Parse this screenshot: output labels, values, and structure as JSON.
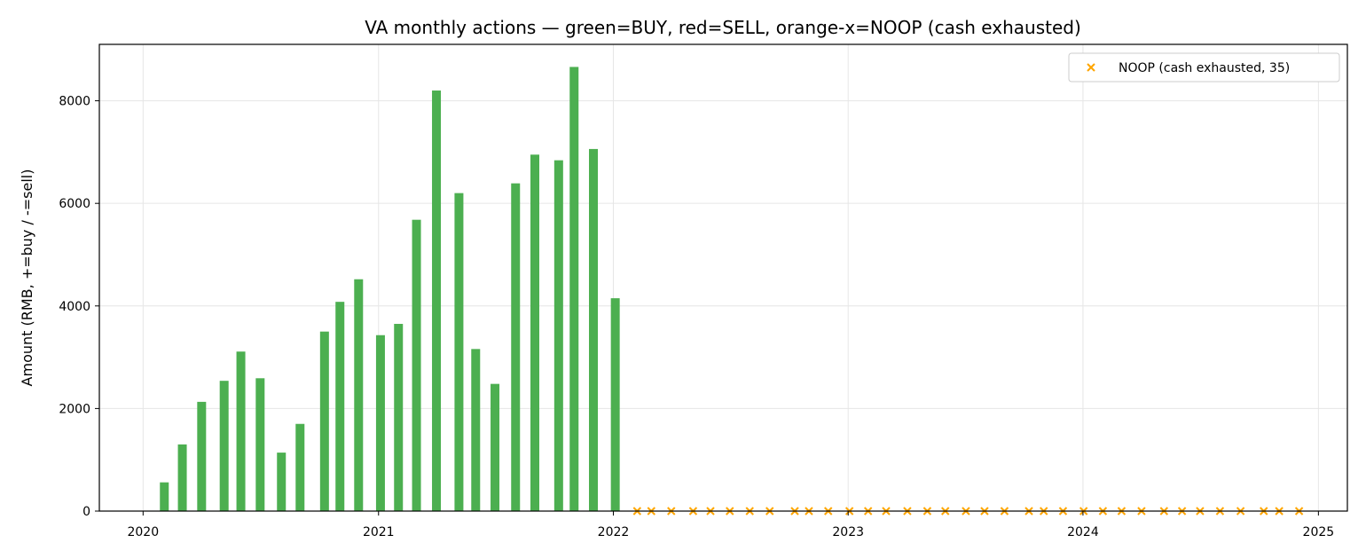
{
  "chart_data": {
    "type": "bar",
    "title": "VA monthly actions — green=BUY, red=SELL, orange-x=NOOP (cash exhausted)",
    "xlabel": "",
    "ylabel": "Amount (RMB, +=buy / -=sell)",
    "x_range": [
      "2019-10-25",
      "2025-02-15"
    ],
    "ylim": [
      0,
      9100
    ],
    "x_ticks": [
      "2020",
      "2021",
      "2022",
      "2023",
      "2024",
      "2025"
    ],
    "y_ticks": [
      0,
      2000,
      4000,
      6000,
      8000
    ],
    "grid": true,
    "legend_position": "top-right",
    "colors": {
      "buy": "#4caf50",
      "sell": "#d62728",
      "noop": "#ffa500",
      "axis": "#000000",
      "grid": "#e6e6e6"
    },
    "series": [
      {
        "kind": "buy",
        "dates": [
          "2020-02-03",
          "2020-03-02",
          "2020-04-01",
          "2020-05-06",
          "2020-06-01",
          "2020-07-01",
          "2020-08-03",
          "2020-09-01",
          "2020-10-09",
          "2020-11-02",
          "2020-12-01",
          "2021-01-04",
          "2021-02-01",
          "2021-03-01",
          "2021-04-01",
          "2021-05-06",
          "2021-06-01",
          "2021-07-01",
          "2021-08-02",
          "2021-09-01",
          "2021-10-08",
          "2021-11-01",
          "2021-12-01",
          "2022-01-04"
        ],
        "values": [
          560,
          1300,
          2130,
          2540,
          3110,
          2590,
          1140,
          1700,
          3500,
          4080,
          4520,
          3430,
          3650,
          5680,
          8200,
          6200,
          3160,
          2480,
          6390,
          6950,
          6840,
          8660,
          7060,
          4150
        ]
      },
      {
        "kind": "noop",
        "name": "NOOP (cash exhausted, 35)",
        "dates": [
          "2022-02-07",
          "2022-03-01",
          "2022-04-01",
          "2022-05-05",
          "2022-06-01",
          "2022-07-01",
          "2022-08-01",
          "2022-09-01",
          "2022-10-10",
          "2022-11-01",
          "2022-12-01",
          "2023-01-03",
          "2023-02-01",
          "2023-03-01",
          "2023-04-03",
          "2023-05-04",
          "2023-06-01",
          "2023-07-03",
          "2023-08-01",
          "2023-09-01",
          "2023-10-09",
          "2023-11-01",
          "2023-12-01",
          "2024-01-02",
          "2024-02-01",
          "2024-03-01",
          "2024-04-01",
          "2024-05-06",
          "2024-06-03",
          "2024-07-01",
          "2024-08-01",
          "2024-09-02",
          "2024-10-08",
          "2024-11-01",
          "2024-12-02"
        ],
        "values": [
          0,
          0,
          0,
          0,
          0,
          0,
          0,
          0,
          0,
          0,
          0,
          0,
          0,
          0,
          0,
          0,
          0,
          0,
          0,
          0,
          0,
          0,
          0,
          0,
          0,
          0,
          0,
          0,
          0,
          0,
          0,
          0,
          0,
          0,
          0
        ]
      }
    ]
  }
}
